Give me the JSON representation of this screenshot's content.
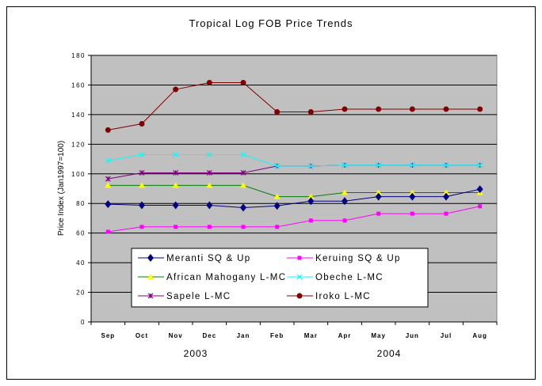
{
  "chart_data": {
    "type": "line",
    "title": "Tropical Log FOB Price Trends",
    "ylabel": "Price Index (Jan1997=100)",
    "xlabel": "",
    "ylim": [
      0,
      180
    ],
    "yticks": [
      0,
      20,
      40,
      60,
      80,
      100,
      120,
      140,
      160,
      180
    ],
    "grid": true,
    "legend": "bottom-center",
    "categories": [
      "Sep",
      "Oct",
      "Nov",
      "Dec",
      "Jan",
      "Feb",
      "Mar",
      "Apr",
      "May",
      "Jun",
      "Jul",
      "Aug"
    ],
    "year_labels": [
      "2003",
      "2004"
    ],
    "series": [
      {
        "name": "Meranti SQ & Up",
        "color": "#000080",
        "marker": "diamond",
        "values": [
          79.5,
          78.8,
          78.8,
          78.8,
          77.2,
          78.4,
          81.6,
          81.6,
          84.6,
          84.6,
          84.6,
          89.6
        ]
      },
      {
        "name": "Keruing SQ & Up",
        "color": "#ff00ff",
        "marker": "square",
        "values": [
          60.9,
          64.2,
          64.2,
          64.2,
          64.2,
          64.2,
          68.5,
          68.5,
          73.1,
          73.1,
          73.1,
          78.1
        ]
      },
      {
        "name": "African Mahogany L-MC",
        "color": "#008000",
        "markerColor": "#ffff00",
        "marker": "triangle",
        "values": [
          92.2,
          92.2,
          92.2,
          92.2,
          92.2,
          84.6,
          84.6,
          87.3,
          87.3,
          87.3,
          87.3,
          87.3
        ]
      },
      {
        "name": "Obeche L-MC",
        "color": "#00ffff",
        "marker": "x",
        "values": [
          108.8,
          113,
          113,
          113,
          113,
          105.3,
          105.3,
          105.8,
          105.8,
          105.8,
          105.8,
          105.8
        ]
      },
      {
        "name": "Sapele L-MC",
        "color": "#800080",
        "marker": "star",
        "values": [
          96.6,
          100.7,
          100.7,
          100.7,
          100.7,
          105.3,
          105.3,
          105.8,
          105.8,
          105.8,
          105.8,
          105.8
        ]
      },
      {
        "name": "Iroko L-MC",
        "color": "#800000",
        "marker": "circle",
        "values": [
          129.6,
          133.8,
          157,
          161.6,
          161.6,
          141.8,
          141.8,
          143.7,
          143.7,
          143.7,
          143.7,
          143.7
        ]
      }
    ]
  }
}
